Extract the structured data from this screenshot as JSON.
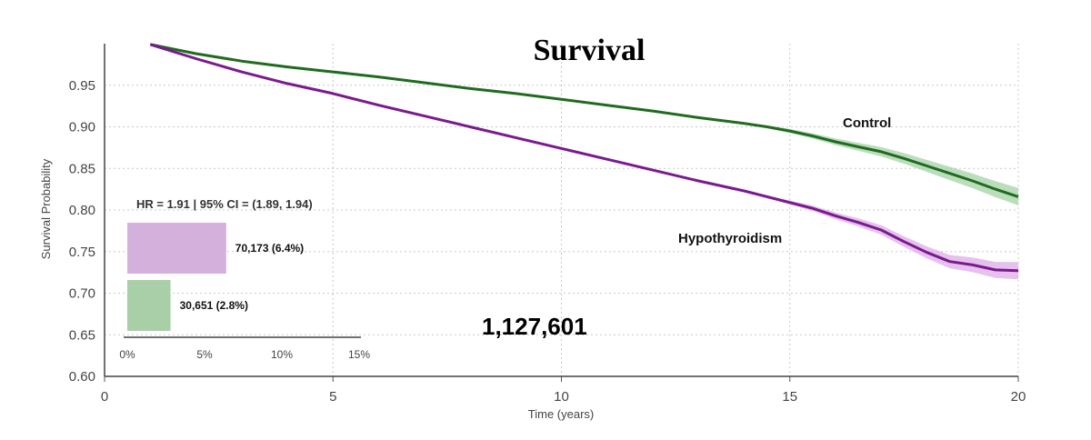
{
  "chart_data": {
    "type": "line",
    "title": "Survival",
    "xlabel": "Time (years)",
    "ylabel": "Survival Probability",
    "xlim": [
      0,
      20
    ],
    "ylim": [
      0.6,
      1.0
    ],
    "xticks": [
      "0",
      "5",
      "10",
      "15",
      "20"
    ],
    "yticks": [
      "0.60",
      "0.65",
      "0.70",
      "0.75",
      "0.80",
      "0.85",
      "0.90",
      "0.95"
    ],
    "grid": true,
    "series": [
      {
        "name": "Control",
        "color": "#1f6b1f",
        "ci_color": "#9fce9f",
        "x": [
          1,
          2,
          3,
          4,
          5,
          6,
          7,
          8,
          9,
          10,
          11,
          12,
          13,
          14,
          14.5,
          15,
          15.5,
          16,
          16.5,
          17,
          17.5,
          18,
          18.5,
          19,
          19.5,
          20
        ],
        "y": [
          0.999,
          0.988,
          0.979,
          0.972,
          0.966,
          0.96,
          0.953,
          0.946,
          0.94,
          0.933,
          0.926,
          0.919,
          0.911,
          0.904,
          0.9,
          0.895,
          0.889,
          0.882,
          0.876,
          0.87,
          0.862,
          0.853,
          0.844,
          0.835,
          0.825,
          0.816
        ]
      },
      {
        "name": "Hypothyroidism",
        "color": "#7a1a8f",
        "ci_color": "#dca6e6",
        "x": [
          1,
          2,
          3,
          4,
          5,
          6,
          7,
          8,
          9,
          10,
          11,
          12,
          13,
          14,
          15,
          15.5,
          16,
          16.5,
          17,
          17.5,
          18,
          18.5,
          19,
          19.5,
          20
        ],
        "y": [
          0.999,
          0.982,
          0.966,
          0.952,
          0.94,
          0.926,
          0.913,
          0.9,
          0.887,
          0.874,
          0.861,
          0.848,
          0.835,
          0.823,
          0.809,
          0.802,
          0.793,
          0.785,
          0.776,
          0.762,
          0.749,
          0.738,
          0.734,
          0.728,
          0.727
        ]
      }
    ],
    "annotations": {
      "hr_text": "HR = 1.91  |  95% CI = (1.89, 1.94)",
      "total": "1,127,601"
    },
    "inset_bar": {
      "type": "bar",
      "orientation": "horizontal",
      "xlim": [
        0,
        15
      ],
      "xticks": [
        "0%",
        "5%",
        "10%",
        "15%"
      ],
      "bars": [
        {
          "label": "70,173 (6.4%)",
          "value": 6.4,
          "color": "#d4b0dc"
        },
        {
          "label": "30,651 (2.8%)",
          "value": 2.8,
          "color": "#a9cfa8"
        }
      ]
    }
  }
}
